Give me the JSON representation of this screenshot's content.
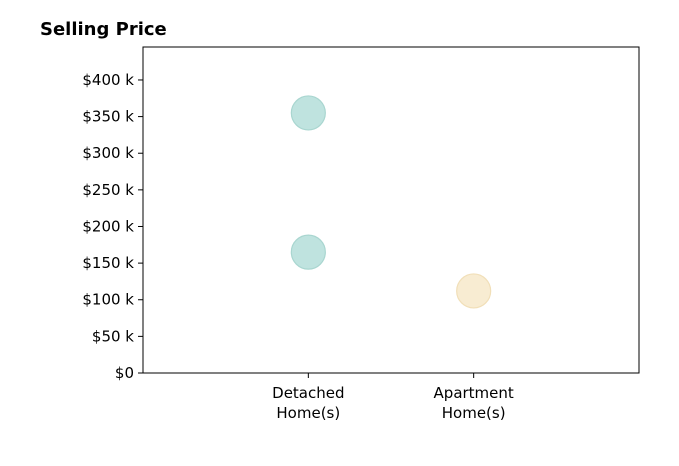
{
  "chart_data": {
    "type": "scatter",
    "title": "Selling Price",
    "xlabel": "",
    "ylabel": "",
    "categories": [
      [
        "Detached",
        "Home(s)"
      ],
      [
        "Apartment",
        "Home(s)"
      ]
    ],
    "xlim": [
      -1,
      2
    ],
    "ylim": [
      0,
      445000
    ],
    "y_ticks": [
      0,
      50000,
      100000,
      150000,
      200000,
      250000,
      300000,
      350000,
      400000
    ],
    "y_tick_labels": [
      "$0",
      "$50 k",
      "$100 k",
      "$150 k",
      "$200 k",
      "$250 k",
      "$300 k",
      "$350 k",
      "$400 k"
    ],
    "grid": false,
    "series": [
      {
        "category": 0,
        "color": "#bfe3df",
        "edge_color": "#a9d6d0",
        "points": [
          165000,
          355000
        ]
      },
      {
        "category": 1,
        "color": "#f8ecd2",
        "edge_color": "#f1dfb8",
        "points": [
          112000
        ]
      }
    ]
  }
}
